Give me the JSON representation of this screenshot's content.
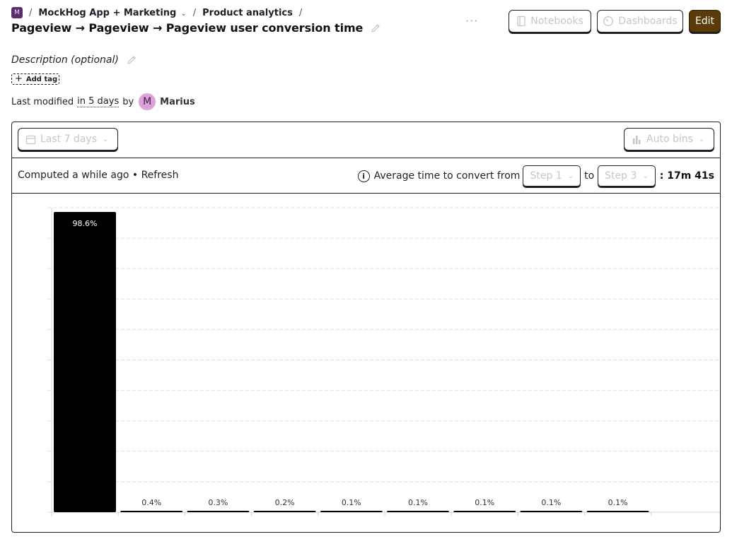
{
  "breadcrumbs": {
    "org_initial": "M",
    "separator": "/",
    "project": "MockHog App + Marketing",
    "section": "Product analytics"
  },
  "insight": {
    "title": "Pageview → Pageview → Pageview user conversion time",
    "description_placeholder": "Description (optional)",
    "add_tag_label": "Add tag",
    "last_modified_prefix": "Last modified",
    "last_modified_when": "in 5 days",
    "last_modified_by": "by",
    "user_initial": "M",
    "user_name": "Marius"
  },
  "toolbar": {
    "more_label": "···",
    "notebooks_label": "Notebooks",
    "dashboards_label": "Dashboards",
    "edit_label": "Edit"
  },
  "filters": {
    "date_range_label": "Last 7 days",
    "bins_label": "Auto bins"
  },
  "info_bar": {
    "computed_text": "Computed a while ago",
    "bullet": "•",
    "refresh_label": "Refresh",
    "conversion_prefix": "Average time to convert from",
    "from_step": "Step 1",
    "to_word": "to",
    "to_step": "Step 3",
    "conversion_time": ": 17m 41s"
  },
  "colors": {
    "bar": "#000000",
    "edit_button_bg": "#5b3b0a",
    "avatar_bg": "#d8a3d9",
    "org_badge_bg": "#5a2d6b"
  },
  "chart_data": {
    "type": "bar",
    "values": [
      98.6,
      0.4,
      0.3,
      0.2,
      0.1,
      0.1,
      0.1,
      0.1,
      0.1
    ],
    "labels": [
      "98.6%",
      "0.4%",
      "0.3%",
      "0.2%",
      "0.1%",
      "0.1%",
      "0.1%",
      "0.1%",
      "0.1%"
    ],
    "ylim": [
      0,
      100
    ],
    "grid": true
  }
}
